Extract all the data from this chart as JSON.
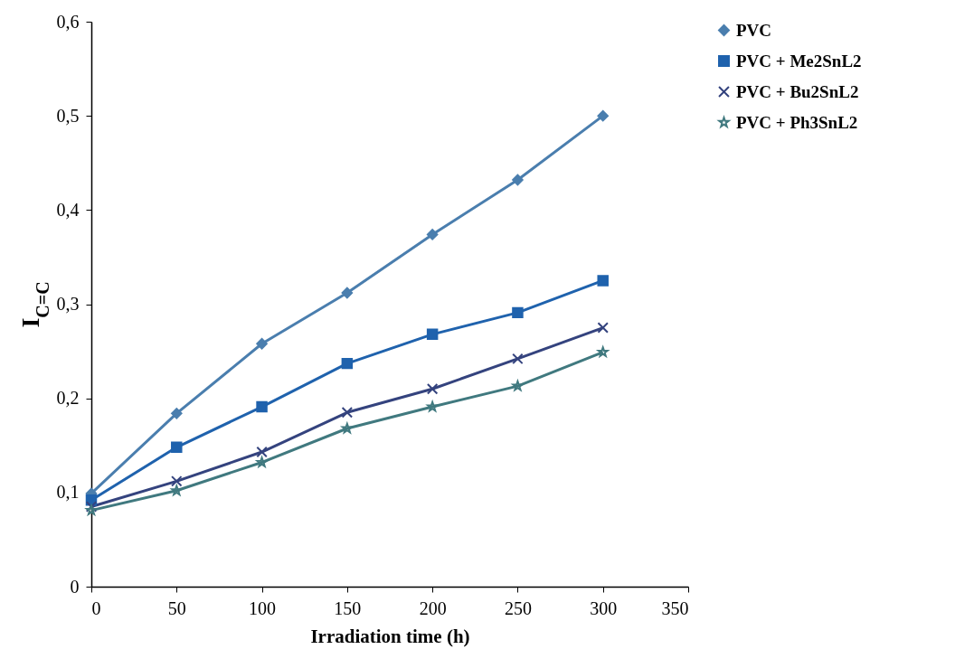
{
  "chart_data": {
    "type": "line",
    "xlabel": "Irradiation time (h)",
    "ylabel": "I$_{C=C}$",
    "x": [
      0,
      50,
      100,
      150,
      200,
      250,
      300
    ],
    "series": [
      {
        "name": "PVC",
        "color": "#4a7eae",
        "marker": "diamond",
        "values": [
          0.099,
          0.184,
          0.258,
          0.312,
          0.374,
          0.432,
          0.5
        ]
      },
      {
        "name": "PVC + Me2SnL2",
        "color": "#1f62ad",
        "marker": "square",
        "values": [
          0.092,
          0.148,
          0.191,
          0.237,
          0.268,
          0.291,
          0.325
        ]
      },
      {
        "name": "PVC + Bu2SnL2",
        "color": "#34437e",
        "marker": "cross",
        "values": [
          0.085,
          0.112,
          0.143,
          0.185,
          0.21,
          0.242,
          0.275
        ]
      },
      {
        "name": "PVC + Ph3SnL2",
        "color": "#40797f",
        "marker": "star",
        "values": [
          0.081,
          0.102,
          0.132,
          0.168,
          0.191,
          0.213,
          0.249
        ]
      }
    ],
    "xlim": [
      0,
      350
    ],
    "xticks": [
      0,
      50,
      100,
      150,
      200,
      250,
      300,
      350
    ],
    "ylim": [
      0,
      0.6
    ],
    "yticks": [
      0,
      {
        "value": 0.1,
        "label": "0,1"
      },
      {
        "value": 0.2,
        "label": "0,2"
      },
      {
        "value": 0.3,
        "label": "0,3"
      },
      {
        "value": 0.4,
        "label": "0,4"
      },
      {
        "value": 0.5,
        "label": "0,5"
      },
      {
        "value": 0.6,
        "label": "0,6"
      }
    ],
    "grid": false,
    "legend": "top right"
  }
}
